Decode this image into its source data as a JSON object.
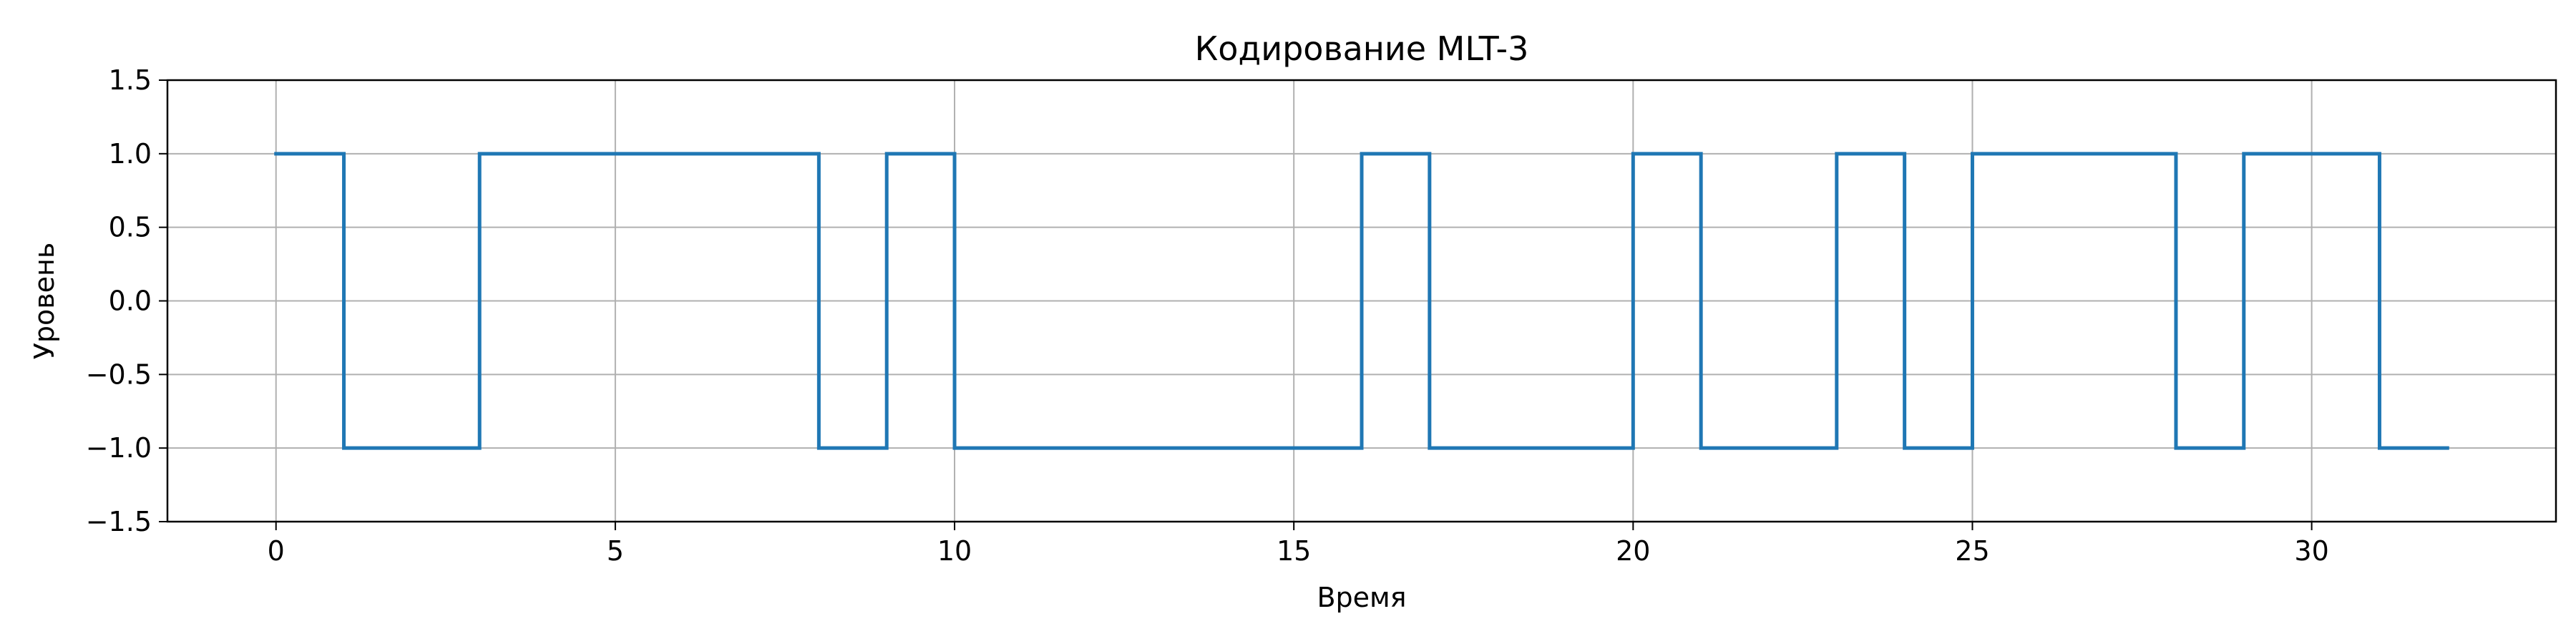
{
  "chart_data": {
    "type": "line",
    "drawstyle": "steps-post",
    "title": "Кодирование MLT-3",
    "xlabel": "Время",
    "ylabel": "Уровень",
    "xlim": [
      -1.6,
      33.6
    ],
    "ylim": [
      -1.5,
      1.5
    ],
    "xticks": [
      0,
      5,
      10,
      15,
      20,
      25,
      30
    ],
    "xtick_labels": [
      "0",
      "5",
      "10",
      "15",
      "20",
      "25",
      "30"
    ],
    "yticks": [
      -1.5,
      -1.0,
      -0.5,
      0.0,
      0.5,
      1.0,
      1.5
    ],
    "ytick_labels": [
      "−1.5",
      "−1.0",
      "−0.5",
      "0.0",
      "0.5",
      "1.0",
      "1.5"
    ],
    "grid": true,
    "series": [
      {
        "color": "#1f77b4",
        "x": [
          0,
          1,
          2,
          3,
          4,
          5,
          6,
          7,
          8,
          9,
          10,
          11,
          12,
          13,
          14,
          15,
          16,
          17,
          18,
          19,
          20,
          21,
          22,
          23,
          24,
          25,
          26,
          27,
          28,
          29,
          30,
          31,
          32
        ],
        "values": [
          1,
          -1,
          -1,
          1,
          1,
          1,
          1,
          1,
          -1,
          1,
          -1,
          -1,
          -1,
          -1,
          -1,
          -1,
          1,
          -1,
          -1,
          -1,
          1,
          -1,
          -1,
          1,
          -1,
          1,
          1,
          1,
          -1,
          1,
          1,
          -1,
          -1
        ]
      }
    ]
  }
}
